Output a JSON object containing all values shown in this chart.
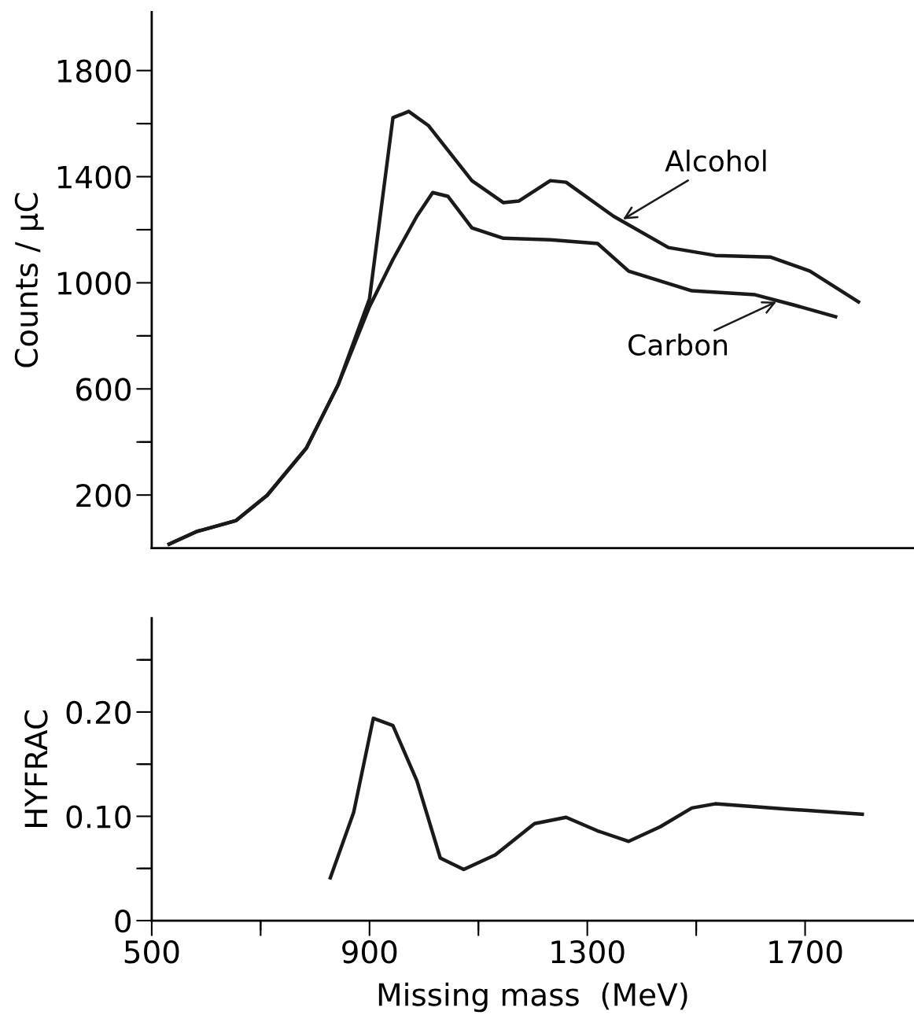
{
  "chart_data": [
    {
      "type": "line",
      "ylabel": "Counts / μC",
      "xlim": [
        500,
        1900
      ],
      "ylim": [
        0,
        2020
      ],
      "yticks": [
        {
          "value": 200,
          "label": "200"
        },
        {
          "value": 400,
          "label": null
        },
        {
          "value": 600,
          "label": "600"
        },
        {
          "value": 800,
          "label": null
        },
        {
          "value": 1000,
          "label": "1000"
        },
        {
          "value": 1200,
          "label": null
        },
        {
          "value": 1400,
          "label": "1400"
        },
        {
          "value": 1600,
          "label": null
        },
        {
          "value": 1800,
          "label": "1800"
        }
      ],
      "tick_labels": "y",
      "grid": false,
      "legend": false,
      "marker": "none",
      "line_style": "solid",
      "series": [
        {
          "color": "#1a1a1a",
          "x": [
            532,
            582,
            655,
            712,
            784,
            842,
            900,
            943,
            972,
            1008,
            1088,
            1146,
            1174,
            1232,
            1261,
            1348,
            1449,
            1535,
            1636,
            1709,
            1798
          ],
          "values": [
            15,
            62,
            104,
            199,
            377,
            614,
            940,
            1622,
            1646,
            1593,
            1385,
            1302,
            1308,
            1385,
            1379,
            1251,
            1133,
            1103,
            1097,
            1044,
            928
          ]
        },
        {
          "color": "#1a1a1a",
          "x": [
            532,
            582,
            655,
            712,
            784,
            842,
            900,
            943,
            987,
            1016,
            1044,
            1088,
            1146,
            1232,
            1319,
            1376,
            1492,
            1608,
            1680,
            1756
          ],
          "values": [
            15,
            62,
            104,
            199,
            377,
            614,
            910,
            1088,
            1251,
            1340,
            1326,
            1207,
            1168,
            1162,
            1148,
            1044,
            970,
            955,
            916,
            872
          ]
        }
      ],
      "annotations": [
        {
          "text": "Alcohol",
          "x": 1362,
          "y": 1235
        },
        {
          "text": "Carbon",
          "x": 1651,
          "y": 932
        }
      ]
    },
    {
      "type": "line",
      "xlabel": "Missing mass  (MeV)",
      "ylabel": "HYFRAC",
      "xlim": [
        500,
        1900
      ],
      "ylim": [
        0,
        0.29
      ],
      "xticks": [
        {
          "value": 500,
          "label": "500"
        },
        {
          "value": 700,
          "label": null
        },
        {
          "value": 900,
          "label": "900"
        },
        {
          "value": 1100,
          "label": null
        },
        {
          "value": 1300,
          "label": "1300"
        },
        {
          "value": 1500,
          "label": null
        },
        {
          "value": 1700,
          "label": "1700"
        }
      ],
      "yticks": [
        {
          "value": 0,
          "label": "0"
        },
        {
          "value": 0.05,
          "label": null
        },
        {
          "value": 0.1,
          "label": "0.10"
        },
        {
          "value": 0.15,
          "label": null
        },
        {
          "value": 0.2,
          "label": "0.20"
        },
        {
          "value": 0.25,
          "label": null
        }
      ],
      "grid": false,
      "legend": false,
      "marker": "none",
      "line_style": "solid",
      "series": [
        {
          "color": "#1a1a1a",
          "x": [
            828,
            871,
            907,
            943,
            987,
            1030,
            1073,
            1131,
            1203,
            1261,
            1319,
            1376,
            1434,
            1492,
            1535,
            1665,
            1805
          ],
          "values": [
            0.041,
            0.104,
            0.194,
            0.187,
            0.134,
            0.06,
            0.049,
            0.063,
            0.093,
            0.099,
            0.086,
            0.076,
            0.09,
            0.108,
            0.112,
            0.107,
            0.102
          ]
        }
      ]
    }
  ]
}
